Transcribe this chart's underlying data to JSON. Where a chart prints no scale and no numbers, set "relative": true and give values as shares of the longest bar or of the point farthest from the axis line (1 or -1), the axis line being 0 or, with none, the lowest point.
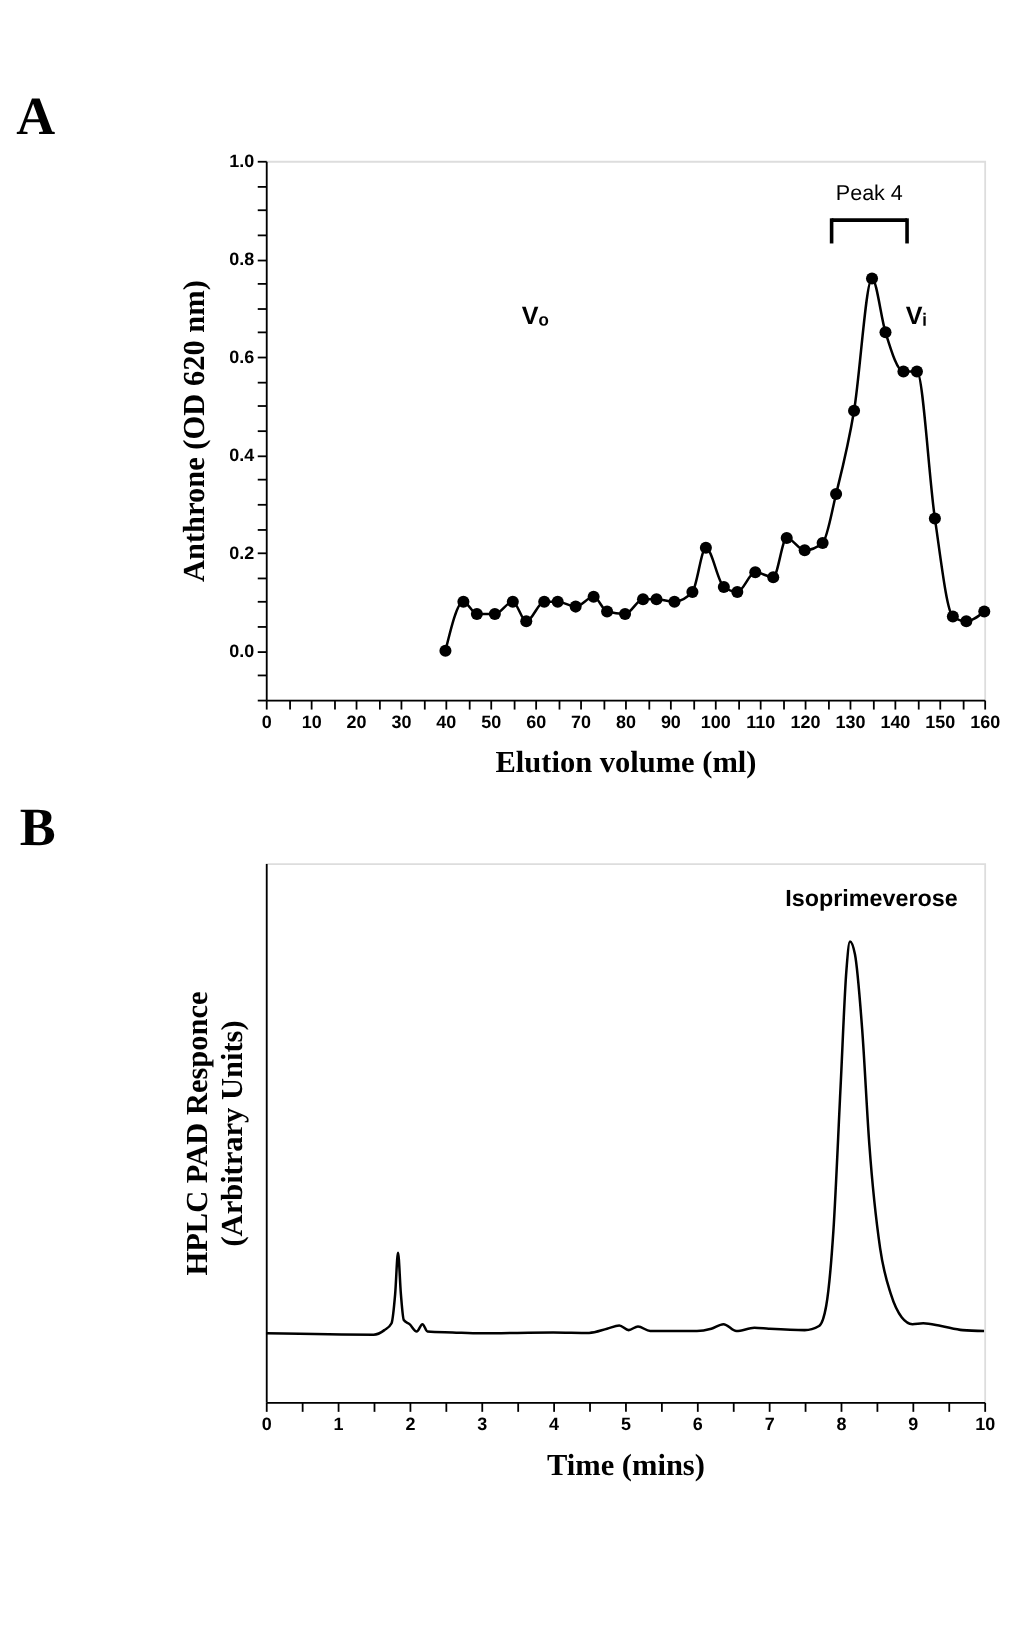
{
  "chart_data": [
    {
      "type": "line",
      "title": "A",
      "xlabel": "Elution volume (ml)",
      "ylabel": "Anthrone (OD 620 nm)",
      "marker": "circle",
      "line_style": "solid",
      "grid": false,
      "x": [
        40,
        44,
        47,
        51,
        55,
        58,
        62,
        65,
        69,
        73,
        76,
        80,
        84,
        87,
        91,
        95,
        98,
        102,
        105,
        109,
        113,
        116,
        120,
        124,
        127,
        131,
        135,
        138,
        142,
        145,
        149,
        153,
        156,
        160
      ],
      "series": [
        {
          "color": "#000000",
          "values": [
            0.0,
            0.1,
            0.075,
            0.075,
            0.1,
            0.06,
            0.1,
            0.1,
            0.09,
            0.11,
            0.08,
            0.075,
            0.105,
            0.105,
            0.1,
            0.12,
            0.21,
            0.13,
            0.12,
            0.16,
            0.15,
            0.23,
            0.205,
            0.22,
            0.32,
            0.49,
            0.76,
            0.65,
            0.57,
            0.57,
            0.27,
            0.07,
            0.06,
            0.08
          ]
        }
      ],
      "xlim": [
        0,
        160
      ],
      "ylim": [
        -0.1,
        1.0
      ],
      "xticks": [
        0,
        {
          "value": 5,
          "label": null
        },
        10,
        {
          "value": 15,
          "label": null
        },
        20,
        {
          "value": 25,
          "label": null
        },
        30,
        {
          "value": 35,
          "label": null
        },
        40,
        {
          "value": 45,
          "label": null
        },
        50,
        {
          "value": 55,
          "label": null
        },
        60,
        {
          "value": 65,
          "label": null
        },
        70,
        {
          "value": 75,
          "label": null
        },
        80,
        {
          "value": 85,
          "label": null
        },
        90,
        {
          "value": 95,
          "label": null
        },
        100,
        {
          "value": 105,
          "label": null
        },
        110,
        {
          "value": 115,
          "label": null
        },
        120,
        {
          "value": 125,
          "label": null
        },
        130,
        {
          "value": 135,
          "label": null
        },
        140,
        {
          "value": 145,
          "label": null
        },
        150,
        {
          "value": 155,
          "label": null
        },
        160
      ],
      "yticks": [
        {
          "value": -0.1,
          "label": null
        },
        {
          "value": -0.05,
          "label": null
        },
        {
          "value": 0,
          "label": "0.0"
        },
        {
          "value": 0.05,
          "label": null
        },
        {
          "value": 0.1,
          "label": null
        },
        {
          "value": 0.15,
          "label": null
        },
        {
          "value": 0.2,
          "label": "0.2"
        },
        {
          "value": 0.25,
          "label": null
        },
        {
          "value": 0.3,
          "label": null
        },
        {
          "value": 0.35,
          "label": null
        },
        {
          "value": 0.4,
          "label": "0.4"
        },
        {
          "value": 0.45,
          "label": null
        },
        {
          "value": 0.5,
          "label": null
        },
        {
          "value": 0.55,
          "label": null
        },
        {
          "value": 0.6,
          "label": "0.6"
        },
        {
          "value": 0.65,
          "label": null
        },
        {
          "value": 0.7,
          "label": null
        },
        {
          "value": 0.75,
          "label": null
        },
        {
          "value": 0.8,
          "label": "0.8"
        },
        {
          "value": 0.85,
          "label": null
        },
        {
          "value": 0.9,
          "label": null
        },
        {
          "value": 0.95,
          "label": null
        },
        {
          "value": 1.0,
          "label": "1.0"
        }
      ],
      "annotations": [
        "Vₒ",
        "Vᵢ",
        "Peak 4"
      ]
    },
    {
      "type": "line",
      "title": "B",
      "xlabel": "Time (mins)",
      "ylabel": "HPLC PAD Responce\n(Arbitrary Units)",
      "relative": true,
      "marker": "none",
      "line_style": "solid",
      "grid": false,
      "tick_labels": "x",
      "x": [
        0,
        1.5,
        1.65,
        1.75,
        1.8,
        1.84,
        1.88,
        1.92,
        2.0,
        2.1,
        2.18,
        2.25,
        2.6,
        3.0,
        4.0,
        4.5,
        4.75,
        4.92,
        5.05,
        5.18,
        5.35,
        6.0,
        6.2,
        6.37,
        6.55,
        6.8,
        7.0,
        7.5,
        7.7,
        7.8,
        7.9,
        8.0,
        8.08,
        8.13,
        8.2,
        8.3,
        8.4,
        8.55,
        8.7,
        8.85,
        9.0,
        9.15,
        9.4,
        9.7,
        10
      ],
      "series": [
        {
          "color": "#000000",
          "values": [
            0.149,
            0.146,
            0.156,
            0.171,
            0.234,
            0.324,
            0.234,
            0.178,
            0.169,
            0.153,
            0.169,
            0.153,
            0.151,
            0.149,
            0.151,
            0.15,
            0.159,
            0.166,
            0.156,
            0.164,
            0.154,
            0.154,
            0.159,
            0.169,
            0.154,
            0.161,
            0.159,
            0.156,
            0.165,
            0.209,
            0.372,
            0.685,
            0.935,
            1.0,
            0.972,
            0.81,
            0.559,
            0.334,
            0.234,
            0.184,
            0.169,
            0.171,
            0.165,
            0.156,
            0.154
          ]
        }
      ],
      "xlim": [
        0,
        10
      ],
      "xticks": [
        0,
        {
          "value": 0.5,
          "label": null
        },
        1,
        {
          "value": 1.5,
          "label": null
        },
        2,
        {
          "value": 2.5,
          "label": null
        },
        3,
        {
          "value": 3.5,
          "label": null
        },
        4,
        {
          "value": 4.5,
          "label": null
        },
        5,
        {
          "value": 5.5,
          "label": null
        },
        6,
        {
          "value": 6.5,
          "label": null
        },
        7,
        {
          "value": 7.5,
          "label": null
        },
        8,
        {
          "value": 8.5,
          "label": null
        },
        9,
        {
          "value": 9.5,
          "label": null
        },
        10
      ],
      "annotations": [
        {
          "text": "Isoprimeverose",
          "x": 8.13,
          "y": 1.0
        }
      ]
    }
  ]
}
